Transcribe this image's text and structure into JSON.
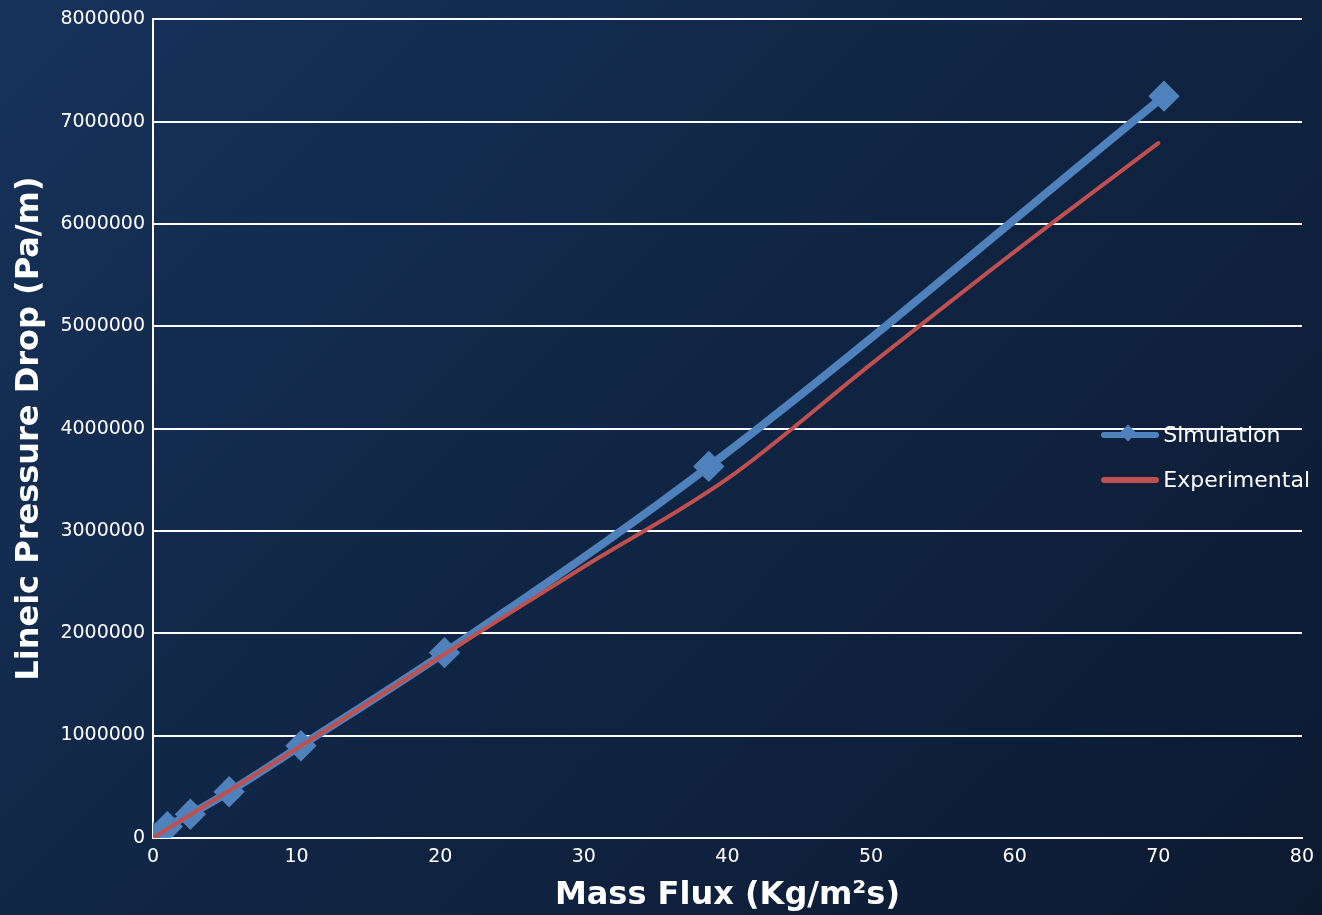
{
  "chart_data": {
    "type": "line",
    "xlabel": "Mass Flux (Kg/m²s)",
    "ylabel": "Lineic Pressure Drop (Pa/m)",
    "xlim": [
      0,
      80
    ],
    "xticks": [
      0,
      10,
      20,
      30,
      40,
      50,
      60,
      70,
      80
    ],
    "ylim": [
      0,
      8000000
    ],
    "yticks": [
      0,
      1000000,
      2000000,
      3000000,
      4000000,
      5000000,
      6000000,
      7000000,
      8000000
    ],
    "grid": "y",
    "legend": "right",
    "series": [
      {
        "name": "Simulation",
        "color": "#4f81bd",
        "marker": "diamond",
        "x": [
          0,
          1,
          2.6,
          5.3,
          10.3,
          20.3,
          38.7,
          70.4
        ],
        "values": [
          0,
          110000,
          230000,
          450000,
          900000,
          1810000,
          3630000,
          7250000
        ]
      },
      {
        "name": "Experimental",
        "color": "#c0504d",
        "marker": "none",
        "x": [
          0,
          10,
          20,
          30,
          40,
          50,
          60,
          70
        ],
        "values": [
          0,
          870000,
          1770000,
          2650000,
          3510000,
          4630000,
          5730000,
          6790000
        ]
      }
    ]
  }
}
